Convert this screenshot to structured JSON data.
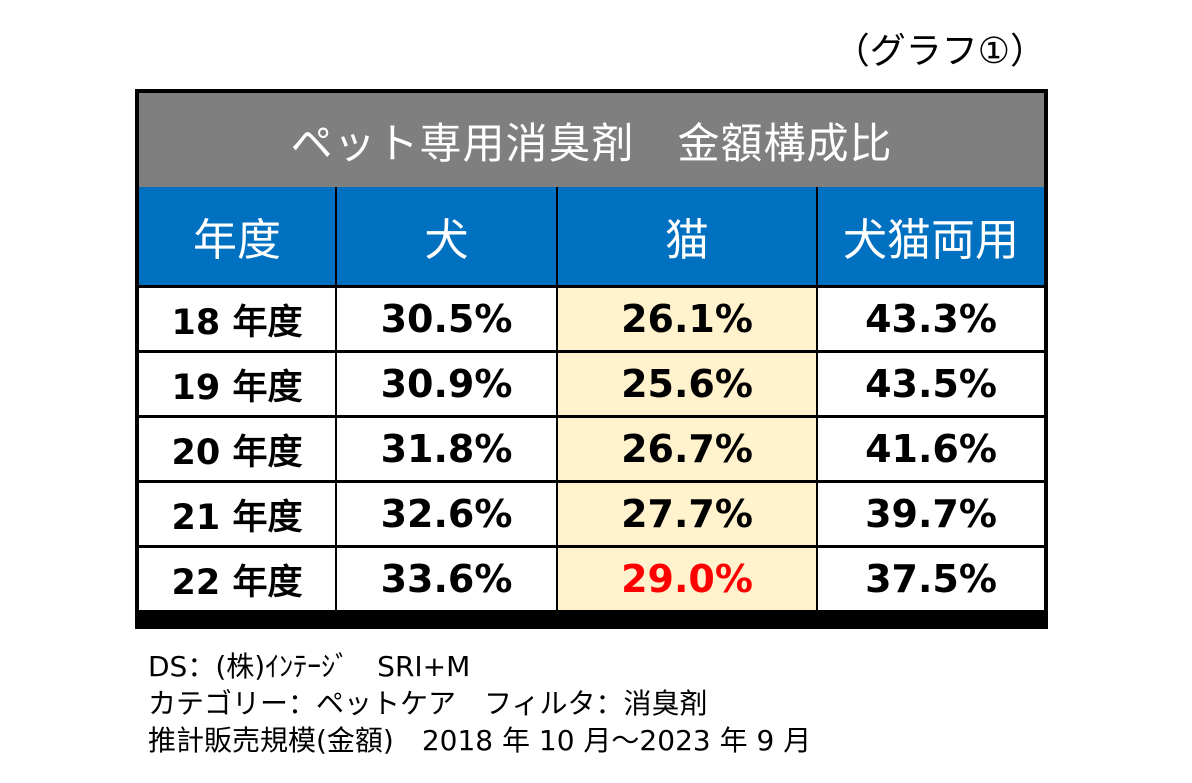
{
  "graph_label": "（グラフ①）",
  "colors": {
    "title_bg": "#7f7f7f",
    "header_bg": "#0070c0",
    "cat_column_bg": "#fff2cc",
    "highlight_text": "#ff0000",
    "border": "#000000"
  },
  "chart_data": {
    "type": "table",
    "title": "ペット専用消臭剤　金額構成比",
    "columns": [
      "年度",
      "犬",
      "猫",
      "犬猫両用"
    ],
    "rows": [
      {
        "year": "18 年度",
        "values": [
          "30.5%",
          "26.1%",
          "43.3%"
        ],
        "highlight": [
          false,
          false,
          false
        ]
      },
      {
        "year": "19 年度",
        "values": [
          "30.9%",
          "25.6%",
          "43.5%"
        ],
        "highlight": [
          false,
          false,
          false
        ]
      },
      {
        "year": "20 年度",
        "values": [
          "31.8%",
          "26.7%",
          "41.6%"
        ],
        "highlight": [
          false,
          false,
          false
        ]
      },
      {
        "year": "21 年度",
        "values": [
          "32.6%",
          "27.7%",
          "39.7%"
        ],
        "highlight": [
          false,
          false,
          false
        ]
      },
      {
        "year": "22 年度",
        "values": [
          "33.6%",
          "29.0%",
          "37.5%"
        ],
        "highlight": [
          false,
          true,
          false
        ]
      }
    ]
  },
  "notes": [
    "DS：(株)ｲﾝﾃｰｼﾞ　SRI+M",
    "カテゴリー：ペットケア　フィルタ：消臭剤",
    "推計販売規模(金額)　2018 年 10 月～2023 年 9 月"
  ]
}
